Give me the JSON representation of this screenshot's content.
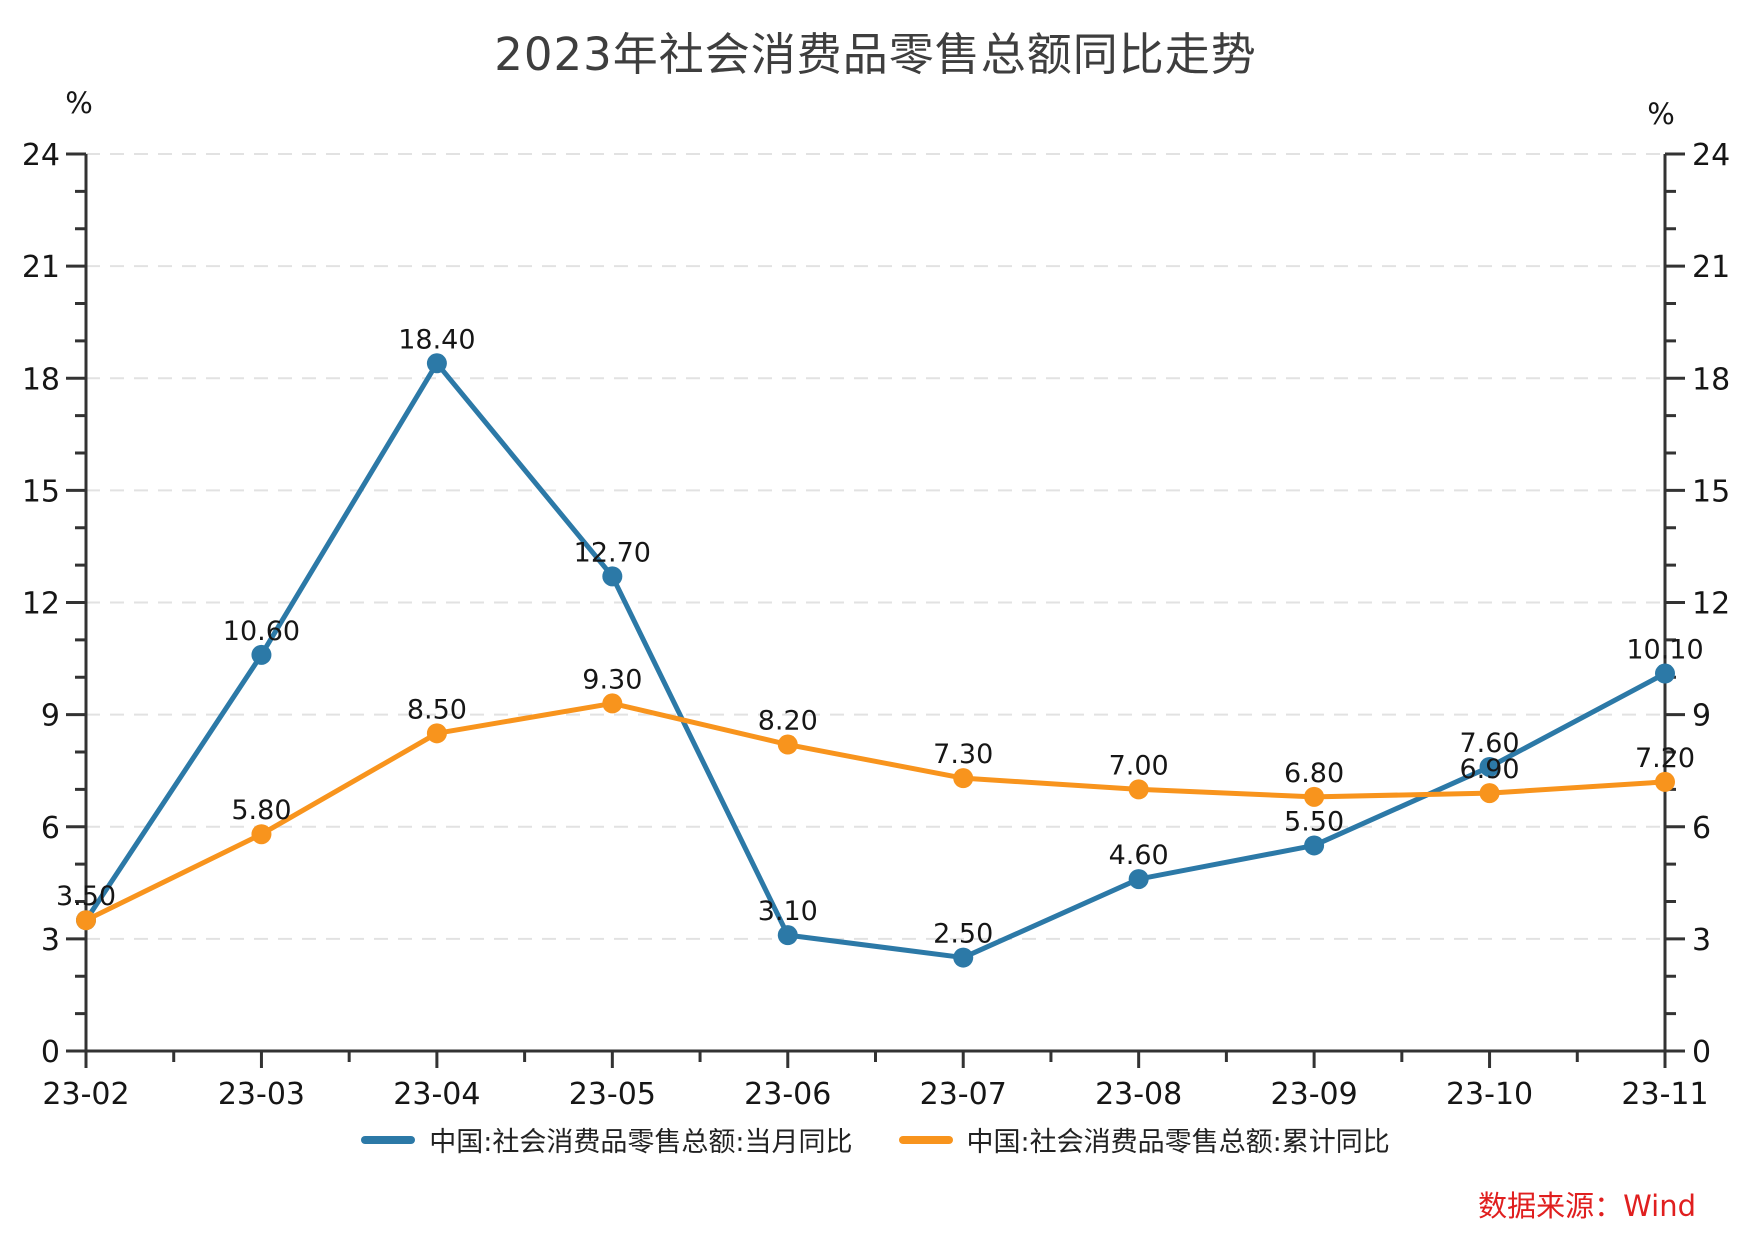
{
  "title": "2023年社会消费品零售总额同比走势",
  "unit_left": "%",
  "unit_right": "%",
  "source": "数据来源：Wind",
  "legend": [
    {
      "label": "中国:社会消费品零售总额:当月同比"
    },
    {
      "label": "中国:社会消费品零售总额:累计同比"
    }
  ],
  "colors": {
    "monthly_series": "#2c79a7",
    "cumulative_series": "#f8941d",
    "source_text": "#e01f1f",
    "axis": "#333333",
    "gridline": "#e2e2e2",
    "label_text": "#161616",
    "title_text": "#3e3e3e"
  },
  "chart_data": {
    "type": "line",
    "title": "2023年社会消费品零售总额同比走势",
    "categories": [
      "23-02",
      "23-03",
      "23-04",
      "23-05",
      "23-06",
      "23-07",
      "23-08",
      "23-09",
      "23-10",
      "23-11"
    ],
    "series": [
      {
        "name": "中国:社会消费品零售总额:当月同比",
        "key": "monthly",
        "color": "#2c79a7",
        "values": [
          3.5,
          10.6,
          18.4,
          12.7,
          3.1,
          2.5,
          4.6,
          5.5,
          7.6,
          10.1
        ]
      },
      {
        "name": "中国:社会消费品零售总额:累计同比",
        "key": "cumulative",
        "color": "#f8941d",
        "values": [
          3.5,
          5.8,
          8.5,
          9.3,
          8.2,
          7.3,
          7.0,
          6.8,
          6.9,
          7.2
        ]
      }
    ],
    "xlabel": "",
    "ylabel": "%",
    "ylim": [
      0,
      24
    ],
    "yticks": [
      0,
      3,
      6,
      9,
      12,
      15,
      18,
      21,
      24
    ],
    "minor_ytick_step": 1,
    "grid": "horizontal-dashed",
    "dual_y_axis": true,
    "legend_position": "bottom",
    "value_label_format": "0.00"
  }
}
